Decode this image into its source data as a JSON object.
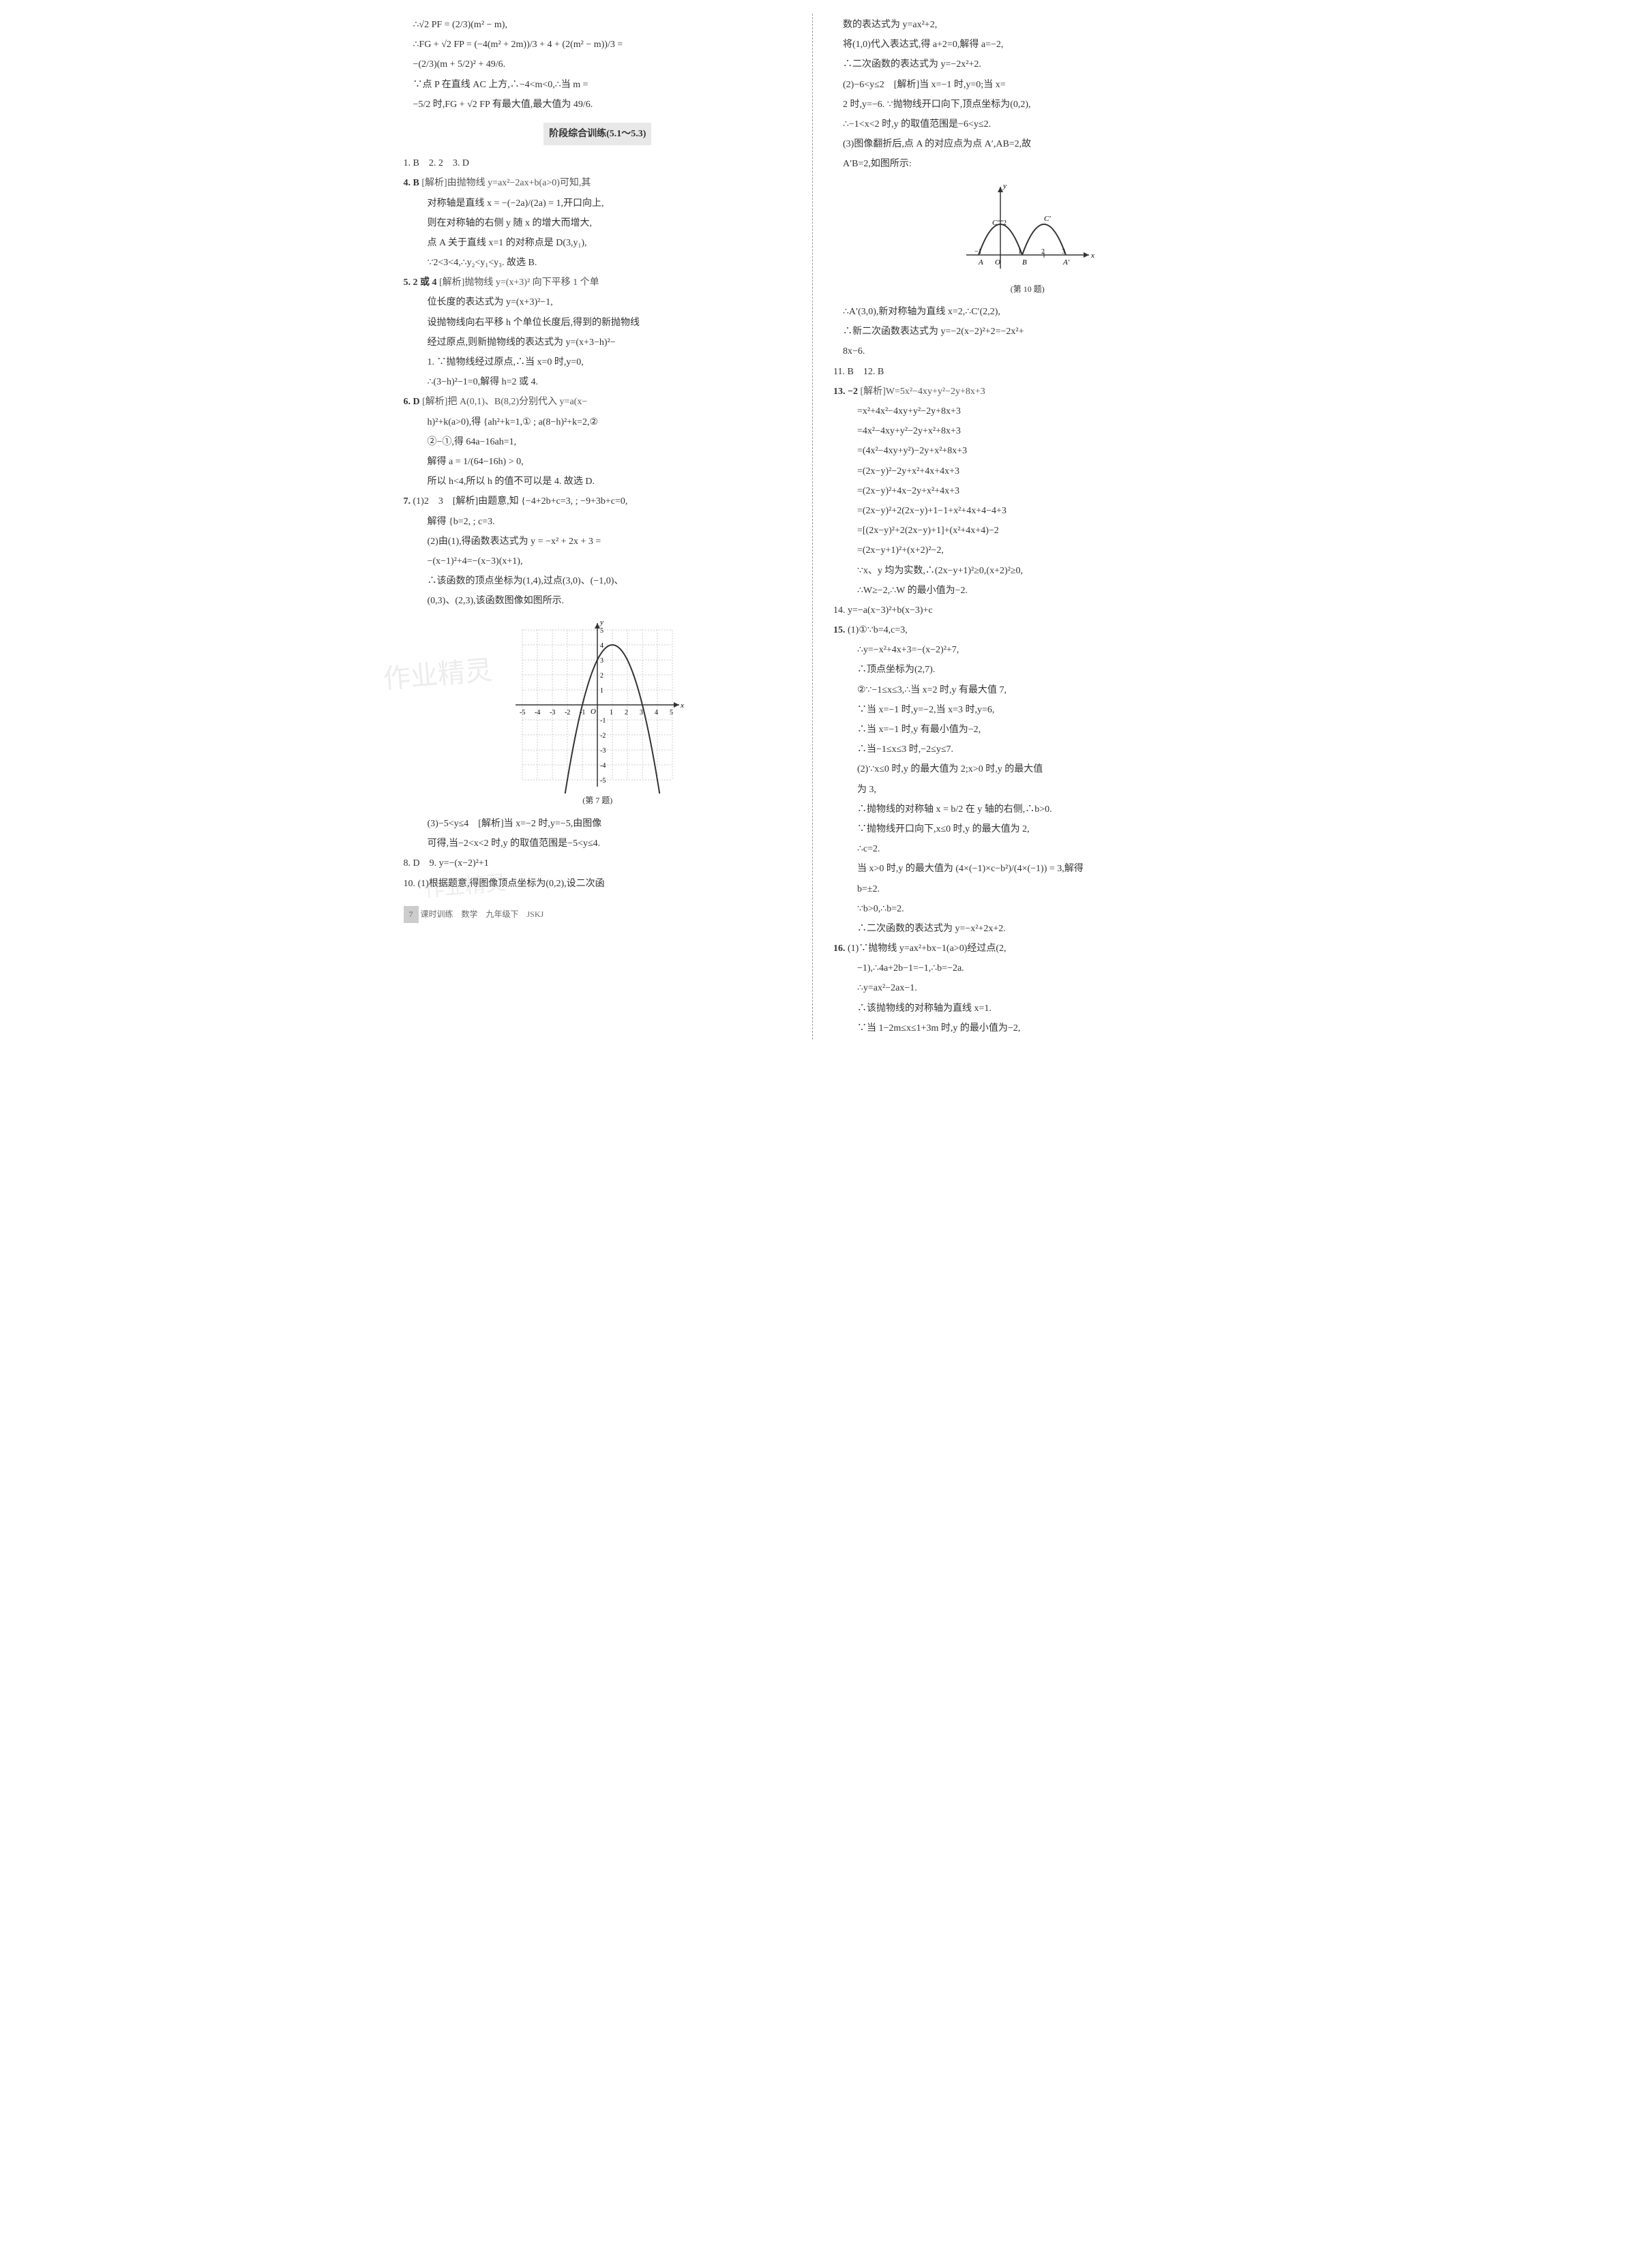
{
  "left_column": {
    "line1": "∴√2 PF = (2/3)(m² − m),",
    "line2": "∴FG + √2 FP = (−4(m² + 2m))/3 + 4 + (2(m² − m))/3 =",
    "line3": "−(2/3)(m + 5/2)² + 49/6.",
    "line4": "∵点 P 在直线 AC 上方,∴−4<m<0,∴当 m =",
    "line5": "−5/2 时,FG + √2 FP 有最大值,最大值为 49/6.",
    "section_title": "阶段综合训练(5.1～5.3)",
    "q1": "1. B　2. 2　3. D",
    "q4_label": "4. B",
    "q4_text1": "[解析]由抛物线 y=ax²−2ax+b(a>0)可知,其",
    "q4_text2": "对称轴是直线 x = −(−2a)/(2a) = 1,开口向上,",
    "q4_text3": "则在对称轴的右侧 y 随 x 的增大而增大,",
    "q4_text4": "点 A 关于直线 x=1 的对称点是 D(3,y₁),",
    "q4_text5": "∵2<3<4,∴y₂<y₁<y₃. 故选 B.",
    "q5_label": "5. 2 或 4",
    "q5_text1": "[解析]抛物线 y=(x+3)² 向下平移 1 个单",
    "q5_text2": "位长度的表达式为 y=(x+3)²−1,",
    "q5_text3": "设抛物线向右平移 h 个单位长度后,得到的新抛物线",
    "q5_text4": "经过原点,则新抛物线的表达式为 y=(x+3−h)²−",
    "q5_text5": "1. ∵抛物线经过原点,∴当 x=0 时,y=0,",
    "q5_text6": "∴(3−h)²−1=0,解得 h=2 或 4.",
    "q6_label": "6. D",
    "q6_text1": "[解析]把 A(0,1)、B(8,2)分别代入 y=a(x−",
    "q6_text2": "h)²+k(a>0),得 {ah²+k=1,① ; a(8−h)²+k=2,②",
    "q6_text3": "②−①,得 64a−16ah=1,",
    "q6_text4": "解得 a = 1/(64−16h) > 0,",
    "q6_text5": "所以 h<4,所以 h 的值不可以是 4. 故选 D.",
    "q7_label": "7.",
    "q7_text1": "(1)2　3　[解析]由题意,知 {−4+2b+c=3, ; −9+3b+c=0,",
    "q7_text2": "解得 {b=2, ; c=3.",
    "q7_text3": "(2)由(1),得函数表达式为 y = −x² + 2x + 3 =",
    "q7_text4": "−(x−1)²+4=−(x−3)(x+1),",
    "q7_text5": "∴该函数的顶点坐标为(1,4),过点(3,0)、(−1,0)、",
    "q7_text6": "(0,3)、(2,3),该函数图像如图所示.",
    "q7_caption": "(第 7 题)",
    "q7_text7": "(3)−5<y≤4　[解析]当 x=−2 时,y=−5,由图像",
    "q7_text8": "可得,当−2<x<2 时,y 的取值范围是−5<y≤4.",
    "q8": "8. D　9. y=−(x−2)²+1",
    "q10_text1": "10. (1)根据题意,得图像顶点坐标为(0,2),设二次函",
    "footer_page": "7",
    "footer_text": "课时训练　数学　九年级下　JSKJ",
    "watermark1": "作业精灵",
    "watermark2": "作业精灵"
  },
  "right_column": {
    "line1": "数的表达式为 y=ax²+2,",
    "line2": "将(1,0)代入表达式,得 a+2=0,解得 a=−2,",
    "line3": "∴二次函数的表达式为 y=−2x²+2.",
    "line4": "(2)−6<y≤2　[解析]当 x=−1 时,y=0;当 x=",
    "line5": "2 时,y=−6. ∵抛物线开口向下,顶点坐标为(0,2),",
    "line6": "∴−1<x<2 时,y 的取值范围是−6<y≤2.",
    "line7": "(3)图像翻折后,点 A 的对应点为点 A′,AB=2,故",
    "line8": "A′B=2,如图所示:",
    "fig10_caption": "(第 10 题)",
    "line9": "∴A′(3,0),新对称轴为直线 x=2,∴C′(2,2),",
    "line10": "∴新二次函数表达式为 y=−2(x−2)²+2=−2x²+",
    "line11": "8x−6.",
    "q11_12": "11. B　12. B",
    "q13_label": "13. −2",
    "q13_text1": "[解析]W=5x²−4xy+y²−2y+8x+3",
    "q13_text2": "=x²+4x²−4xy+y²−2y+8x+3",
    "q13_text3": "=4x²−4xy+y²−2y+x²+8x+3",
    "q13_text4": "=(4x²−4xy+y²)−2y+x²+8x+3",
    "q13_text5": "=(2x−y)²−2y+x²+4x+4x+3",
    "q13_text6": "=(2x−y)²+4x−2y+x²+4x+3",
    "q13_text7": "=(2x−y)²+2(2x−y)+1−1+x²+4x+4−4+3",
    "q13_text8": "=[(2x−y)²+2(2x−y)+1]+(x²+4x+4)−2",
    "q13_text9": "=(2x−y+1)²+(x+2)²−2,",
    "q13_text10": "∵x、y 均为实数,∴(2x−y+1)²≥0,(x+2)²≥0,",
    "q13_text11": "∴W≥−2,∴W 的最小值为−2.",
    "q14": "14. y=−a(x−3)²+b(x−3)+c",
    "q15_label": "15.",
    "q15_text1": "(1)①∵b=4,c=3,",
    "q15_text2": "∴y=−x²+4x+3=−(x−2)²+7,",
    "q15_text3": "∴顶点坐标为(2,7).",
    "q15_text4": "②∵−1≤x≤3,∴当 x=2 时,y 有最大值 7,",
    "q15_text5": "∵当 x=−1 时,y=−2,当 x=3 时,y=6,",
    "q15_text6": "∴当 x=−1 时,y 有最小值为−2,",
    "q15_text7": "∴当−1≤x≤3 时,−2≤y≤7.",
    "q15_text8": "(2)∵x≤0 时,y 的最大值为 2;x>0 时,y 的最大值",
    "q15_text9": "为 3,",
    "q15_text10": "∴抛物线的对称轴 x = b/2 在 y 轴的右侧,∴b>0.",
    "q15_text11": "∵抛物线开口向下,x≤0 时,y 的最大值为 2,",
    "q15_text12": "∴c=2.",
    "q15_text13": "当 x>0 时,y 的最大值为 (4×(−1)×c−b²)/(4×(−1)) = 3,解得",
    "q15_text14": "b=±2.",
    "q15_text15": "∵b>0,∴b=2.",
    "q15_text16": "∴二次函数的表达式为 y=−x²+2x+2.",
    "q16_label": "16.",
    "q16_text1": "(1)∵抛物线 y=ax²+bx−1(a>0)经过点(2,",
    "q16_text2": "−1),∴4a+2b−1=−1,∴b=−2a.",
    "q16_text3": "∴y=ax²−2ax−1.",
    "q16_text4": "∴该抛物线的对称轴为直线 x=1.",
    "q16_text5": "∵当 1−2m≤x≤1+3m 时,y 的最小值为−2,"
  },
  "fig7": {
    "xmin": -5,
    "xmax": 5,
    "ymin": -5,
    "ymax": 5,
    "xticks": [
      -5,
      -4,
      -3,
      -2,
      -1,
      1,
      2,
      3,
      4,
      5
    ],
    "yticks": [
      -5,
      -4,
      -3,
      -2,
      -1,
      1,
      2,
      3,
      4,
      5
    ],
    "vertex": [
      1,
      4
    ],
    "roots": [
      -1,
      3
    ],
    "grid_color": "#cccccc",
    "axis_color": "#333333",
    "curve_color": "#333333"
  },
  "fig10": {
    "points_x": [
      -1,
      0,
      1,
      2,
      3
    ],
    "labels": [
      "A",
      "O",
      "B",
      "",
      "A′"
    ],
    "C_label": "C",
    "Cprime_label": "C′",
    "y_tick": "2",
    "axis_color": "#333333",
    "curve_color": "#333333"
  }
}
